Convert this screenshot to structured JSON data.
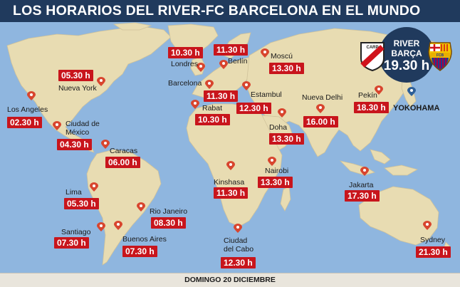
{
  "title": "LOS HORARIOS DEL RIVER-FC BARCELONA EN EL MUNDO",
  "footer": "DOMINGO 20 DICIEMBRE",
  "match": {
    "team1": "RIVER",
    "team2": "BARÇA",
    "time": "19.30 h",
    "venue": "YOKOHAMA"
  },
  "colors": {
    "ocean": "#8fb6df",
    "land": "#e8dcb2",
    "title_bg": "#203a5d",
    "badge": "#c8151c",
    "pin": "#d8452e",
    "venue_pin": "#2d5f98"
  },
  "cities": [
    {
      "id": "los-angeles",
      "name": "Los Angeles",
      "time": "02.30 h"
    },
    {
      "id": "nueva-york",
      "name": "Nueva York",
      "time": "05.30 h"
    },
    {
      "id": "ciudad-de-mexico",
      "name": "Ciudad de México",
      "time": "04.30 h"
    },
    {
      "id": "caracas",
      "name": "Caracas",
      "time": "06.00 h"
    },
    {
      "id": "lima",
      "name": "Lima",
      "time": "05.30 h"
    },
    {
      "id": "santiago",
      "name": "Santiago",
      "time": "07.30 h"
    },
    {
      "id": "buenos-aires",
      "name": "Buenos Aires",
      "time": "07.30 h"
    },
    {
      "id": "rio-janeiro",
      "name": "Rio Janeiro",
      "time": "08.30 h"
    },
    {
      "id": "londres",
      "name": "Londres",
      "time": "10.30 h"
    },
    {
      "id": "berlin",
      "name": "Berlín",
      "time": "11.30 h"
    },
    {
      "id": "moscu",
      "name": "Moscú",
      "time": "13.30 h"
    },
    {
      "id": "barcelona",
      "name": "Barcelona",
      "time": "11.30 h"
    },
    {
      "id": "rabat",
      "name": "Rabat",
      "time": "10.30 h"
    },
    {
      "id": "estambul",
      "name": "Estambul",
      "time": "12.30 h"
    },
    {
      "id": "doha",
      "name": "Doha",
      "time": "13.30 h"
    },
    {
      "id": "nueva-delhi",
      "name": "Nueva Delhi",
      "time": "16.00 h"
    },
    {
      "id": "pekin",
      "name": "Pekín",
      "time": "18.30 h"
    },
    {
      "id": "kinshasa",
      "name": "Kinshasa",
      "time": "11.30 h"
    },
    {
      "id": "nairobi",
      "name": "Nairobi",
      "time": "13.30 h"
    },
    {
      "id": "ciudad-del-cabo",
      "name": "Ciudad del Cabo",
      "time": "12.30 h"
    },
    {
      "id": "jakarta",
      "name": "Jakarta",
      "time": "17.30 h"
    },
    {
      "id": "sydney",
      "name": "Sydney",
      "time": "21.30 h"
    }
  ]
}
